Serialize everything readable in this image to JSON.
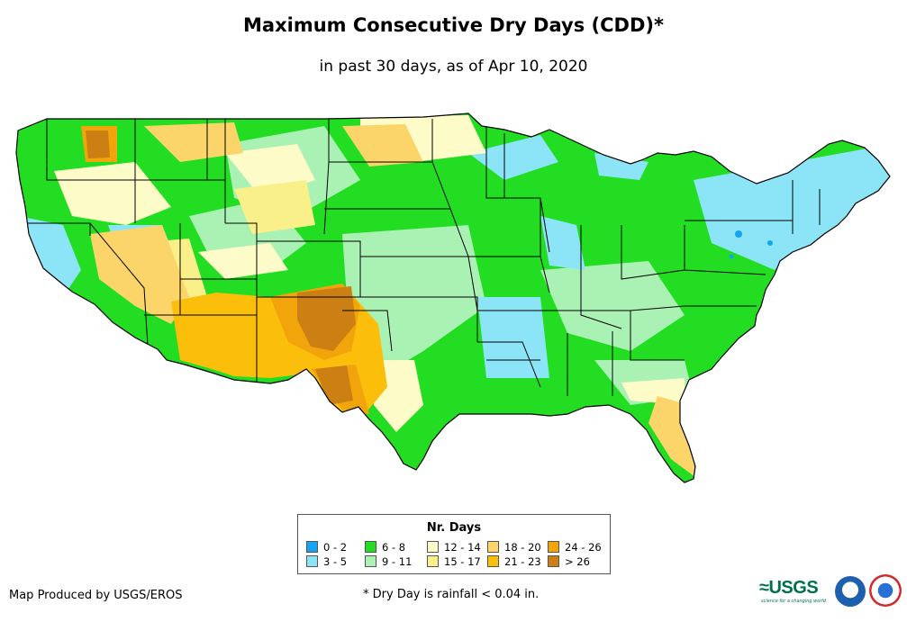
{
  "title": "Maximum Consecutive Dry Days (CDD)*",
  "subtitle": "in past 30 days, as of Apr 10, 2020",
  "legend": {
    "title": "Nr. Days",
    "items": [
      {
        "label": "0 - 2",
        "color": "#16a4f0"
      },
      {
        "label": "3 - 5",
        "color": "#8ce4f7"
      },
      {
        "label": "6 - 8",
        "color": "#22dd22"
      },
      {
        "label": "9 - 11",
        "color": "#aaf2b4"
      },
      {
        "label": "12 - 14",
        "color": "#fdfcc8"
      },
      {
        "label": "15 - 17",
        "color": "#faf08a"
      },
      {
        "label": "18 - 20",
        "color": "#fbd56a"
      },
      {
        "label": "21 - 23",
        "color": "#fbbe0a"
      },
      {
        "label": "24 - 26",
        "color": "#f2a40b"
      },
      {
        "label": "> 26",
        "color": "#cc7f13"
      }
    ]
  },
  "footer": {
    "credit": "Map Produced by USGS/EROS",
    "note": "* Dry Day is rainfall < 0.04 in."
  },
  "logos": {
    "usgs": "≈USGS",
    "usgs_tagline": "science for a changing world"
  }
}
